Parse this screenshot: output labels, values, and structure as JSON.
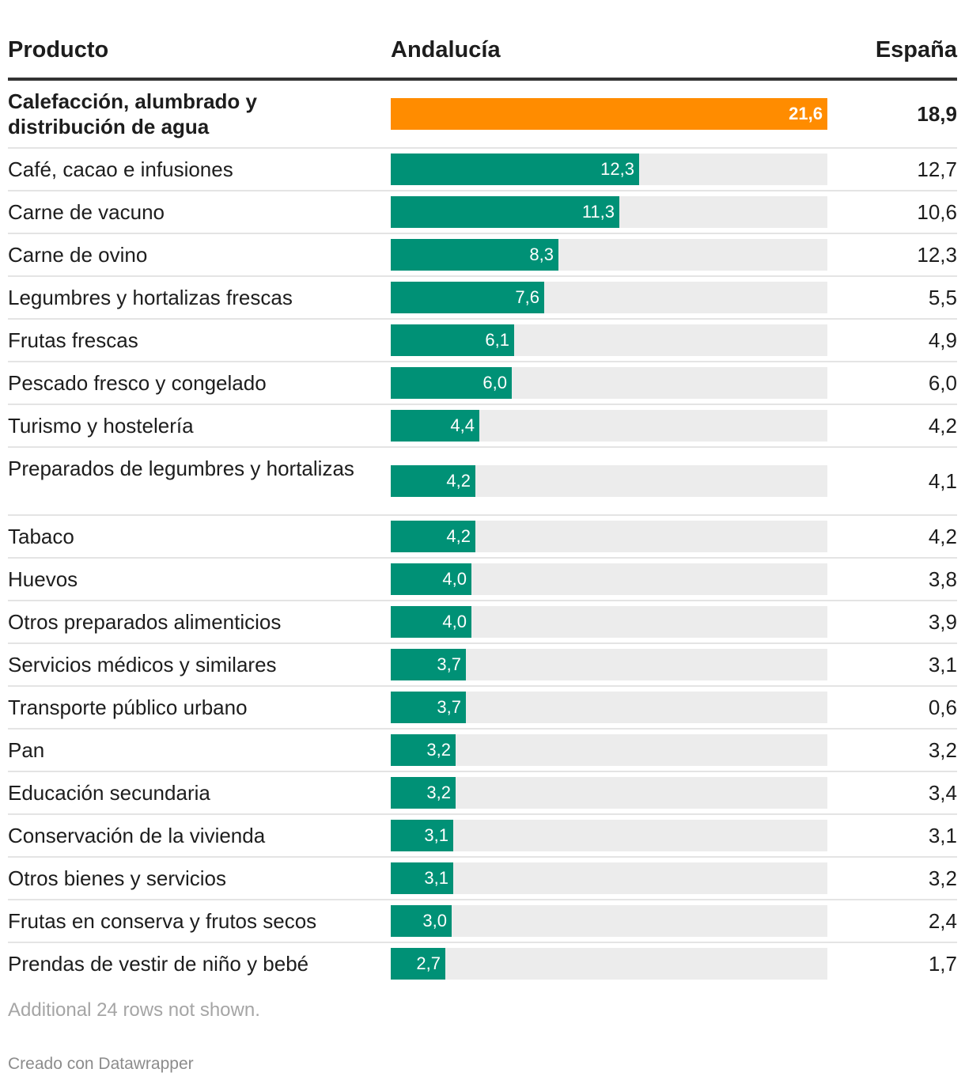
{
  "header": {
    "product": "Producto",
    "andalucia": "Andalucía",
    "espana": "España"
  },
  "colors": {
    "highlight": "#ff8c00",
    "bar": "#009176",
    "track": "#ececec"
  },
  "chart_data": {
    "type": "bar",
    "orientation": "horizontal",
    "xlim": [
      0,
      21.6
    ],
    "columns": [
      "Producto",
      "Andalucía",
      "España"
    ],
    "rows": [
      {
        "product": "Calefacción, alumbrado y distribución de agua",
        "andalucia": 21.6,
        "andalucia_label": "21,6",
        "espana": "18,9",
        "highlight": true
      },
      {
        "product": "Café, cacao e infusiones",
        "andalucia": 12.3,
        "andalucia_label": "12,3",
        "espana": "12,7"
      },
      {
        "product": "Carne de vacuno",
        "andalucia": 11.3,
        "andalucia_label": "11,3",
        "espana": "10,6"
      },
      {
        "product": "Carne de ovino",
        "andalucia": 8.3,
        "andalucia_label": "8,3",
        "espana": "12,3"
      },
      {
        "product": "Legumbres y hortalizas frescas",
        "andalucia": 7.6,
        "andalucia_label": "7,6",
        "espana": "5,5"
      },
      {
        "product": "Frutas frescas",
        "andalucia": 6.1,
        "andalucia_label": "6,1",
        "espana": "4,9"
      },
      {
        "product": "Pescado fresco y congelado",
        "andalucia": 6.0,
        "andalucia_label": "6,0",
        "espana": "6,0"
      },
      {
        "product": "Turismo y hostelería",
        "andalucia": 4.4,
        "andalucia_label": "4,4",
        "espana": "4,2"
      },
      {
        "product": "Preparados de legumbres y hortalizas",
        "andalucia": 4.2,
        "andalucia_label": "4,2",
        "espana": "4,1"
      },
      {
        "product": "Tabaco",
        "andalucia": 4.2,
        "andalucia_label": "4,2",
        "espana": "4,2"
      },
      {
        "product": "Huevos",
        "andalucia": 4.0,
        "andalucia_label": "4,0",
        "espana": "3,8"
      },
      {
        "product": "Otros preparados alimenticios",
        "andalucia": 4.0,
        "andalucia_label": "4,0",
        "espana": "3,9"
      },
      {
        "product": "Servicios médicos y similares",
        "andalucia": 3.7,
        "andalucia_label": "3,7",
        "espana": "3,1"
      },
      {
        "product": "Transporte público urbano",
        "andalucia": 3.7,
        "andalucia_label": "3,7",
        "espana": "0,6"
      },
      {
        "product": "Pan",
        "andalucia": 3.2,
        "andalucia_label": "3,2",
        "espana": "3,2"
      },
      {
        "product": "Educación secundaria",
        "andalucia": 3.2,
        "andalucia_label": "3,2",
        "espana": "3,4"
      },
      {
        "product": "Conservación de la vivienda",
        "andalucia": 3.1,
        "andalucia_label": "3,1",
        "espana": "3,1"
      },
      {
        "product": "Otros bienes y servicios",
        "andalucia": 3.1,
        "andalucia_label": "3,1",
        "espana": "3,2"
      },
      {
        "product": "Frutas en conserva y frutos secos",
        "andalucia": 3.0,
        "andalucia_label": "3,0",
        "espana": "2,4"
      },
      {
        "product": "Prendas de vestir de niño y bebé",
        "andalucia": 2.7,
        "andalucia_label": "2,7",
        "espana": "1,7"
      }
    ]
  },
  "footer": {
    "note": "Additional 24 rows not shown.",
    "credit": "Creado con Datawrapper"
  }
}
